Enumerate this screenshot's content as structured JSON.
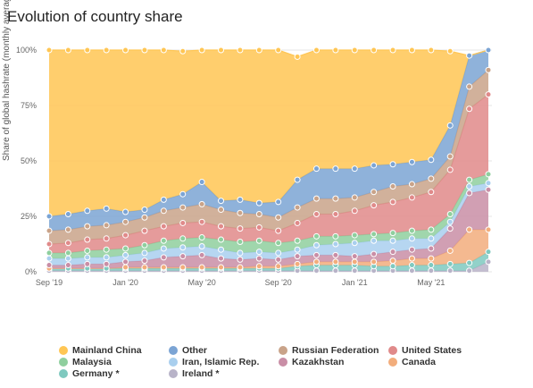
{
  "page_title": "Evolution of country share",
  "chart_data": {
    "type": "area",
    "title": "Evolution of country share",
    "ylabel": "Share of global hashrate (monthly average)",
    "xlabel": "",
    "x": [
      "2019-09",
      "2019-10",
      "2019-11",
      "2019-12",
      "2020-01",
      "2020-02",
      "2020-03",
      "2020-04",
      "2020-05",
      "2020-06",
      "2020-07",
      "2020-08",
      "2020-09",
      "2020-10",
      "2020-11",
      "2020-12",
      "2021-01",
      "2021-02",
      "2021-03",
      "2021-04",
      "2021-05",
      "2021-06",
      "2021-07",
      "2021-08"
    ],
    "x_ticks": [
      "Sep '19",
      "Jan '20",
      "May '20",
      "Sep '20",
      "Jan '21",
      "May '21"
    ],
    "x_tick_index": [
      0,
      4,
      8,
      12,
      16,
      20
    ],
    "ylim": [
      0,
      100
    ],
    "y_ticks": [
      "0%",
      "25%",
      "50%",
      "75%",
      "100%"
    ],
    "stacked": true,
    "grid": true,
    "legend_position": "bottom",
    "series": [
      {
        "name": "Ireland *",
        "color": "#b8b3c8",
        "values": [
          0.5,
          0.5,
          0.5,
          0.5,
          0.5,
          0.5,
          0.5,
          0.5,
          0.5,
          0.5,
          0.5,
          0.5,
          0.5,
          0.5,
          0.5,
          0.5,
          0.5,
          0.5,
          0.5,
          0.5,
          0.5,
          0.5,
          0.5,
          4.5
        ]
      },
      {
        "name": "Germany *",
        "color": "#7fc9bf",
        "values": [
          1,
          1,
          1,
          1,
          1,
          1,
          1,
          1,
          1,
          1,
          1,
          1,
          1,
          2,
          2.5,
          2.5,
          2.5,
          2,
          2,
          2.5,
          2.5,
          3,
          3.5,
          4.5
        ]
      },
      {
        "name": "Canada",
        "color": "#f2ad7c",
        "values": [
          0,
          0,
          0,
          0,
          0.5,
          0.5,
          0.5,
          0.5,
          0.5,
          0.5,
          0.5,
          1,
          1,
          1,
          1.5,
          1.5,
          1.5,
          2,
          2.5,
          3,
          3,
          6,
          15,
          10
        ]
      },
      {
        "name": "Kazakhstan",
        "color": "#c98ea6",
        "values": [
          1.5,
          1.5,
          2,
          2,
          2.5,
          3,
          4.5,
          5,
          5.5,
          4,
          3.5,
          3.5,
          3,
          3.5,
          3,
          3,
          2.5,
          3.5,
          4,
          4,
          4.5,
          10,
          16.5,
          18
        ]
      },
      {
        "name": "Iran, Islamic Rep.",
        "color": "#a9cfee",
        "values": [
          3,
          3,
          3,
          3,
          3,
          3.5,
          4,
          4,
          4,
          4,
          3,
          3,
          3,
          3,
          4.5,
          5,
          6,
          6,
          5,
          5,
          4.5,
          3,
          3,
          3
        ]
      },
      {
        "name": "Malaysia",
        "color": "#8fcf9e",
        "values": [
          2.5,
          2.5,
          3,
          3.5,
          3,
          3.5,
          3.5,
          4,
          4,
          4.5,
          5,
          5,
          4.5,
          4,
          4,
          3.5,
          3.5,
          3,
          3.5,
          3.5,
          4,
          3.5,
          3,
          4
        ]
      },
      {
        "name": "United States",
        "color": "#e08a8a",
        "values": [
          4,
          4.5,
          5,
          5,
          6,
          6.5,
          6.5,
          7,
          7,
          6,
          6,
          6,
          5.5,
          8,
          10,
          10,
          11,
          13,
          14,
          15,
          17,
          20,
          32,
          36
        ]
      },
      {
        "name": "Russian Federation",
        "color": "#c9a389",
        "values": [
          6,
          6,
          6,
          6,
          6,
          6,
          7,
          7,
          8,
          7.5,
          7,
          6,
          6,
          7,
          7,
          7,
          6,
          6,
          7,
          6,
          6,
          6,
          10,
          11
        ]
      },
      {
        "name": "Other",
        "color": "#7ba4d4",
        "values": [
          6.5,
          7,
          7,
          7.5,
          4.5,
          3.5,
          5,
          6,
          10,
          4,
          6,
          5,
          7,
          12.5,
          13.5,
          13.5,
          13,
          12,
          10,
          10,
          8.5,
          14,
          14,
          9
        ]
      },
      {
        "name": "Mainland China",
        "color": "#ffc654",
        "values": [
          75,
          74,
          72.5,
          71.5,
          73,
          72,
          67.5,
          64.5,
          59.5,
          68,
          67.5,
          69,
          68.5,
          55.5,
          53.5,
          53.5,
          53.5,
          52,
          51.5,
          50.5,
          49.5,
          33.5,
          0,
          0
        ]
      }
    ],
    "legend_order": [
      "Mainland China",
      "Other",
      "Russian Federation",
      "United States",
      "Malaysia",
      "Iran, Islamic Rep.",
      "Kazakhstan",
      "Canada",
      "Germany *",
      "Ireland *"
    ]
  }
}
